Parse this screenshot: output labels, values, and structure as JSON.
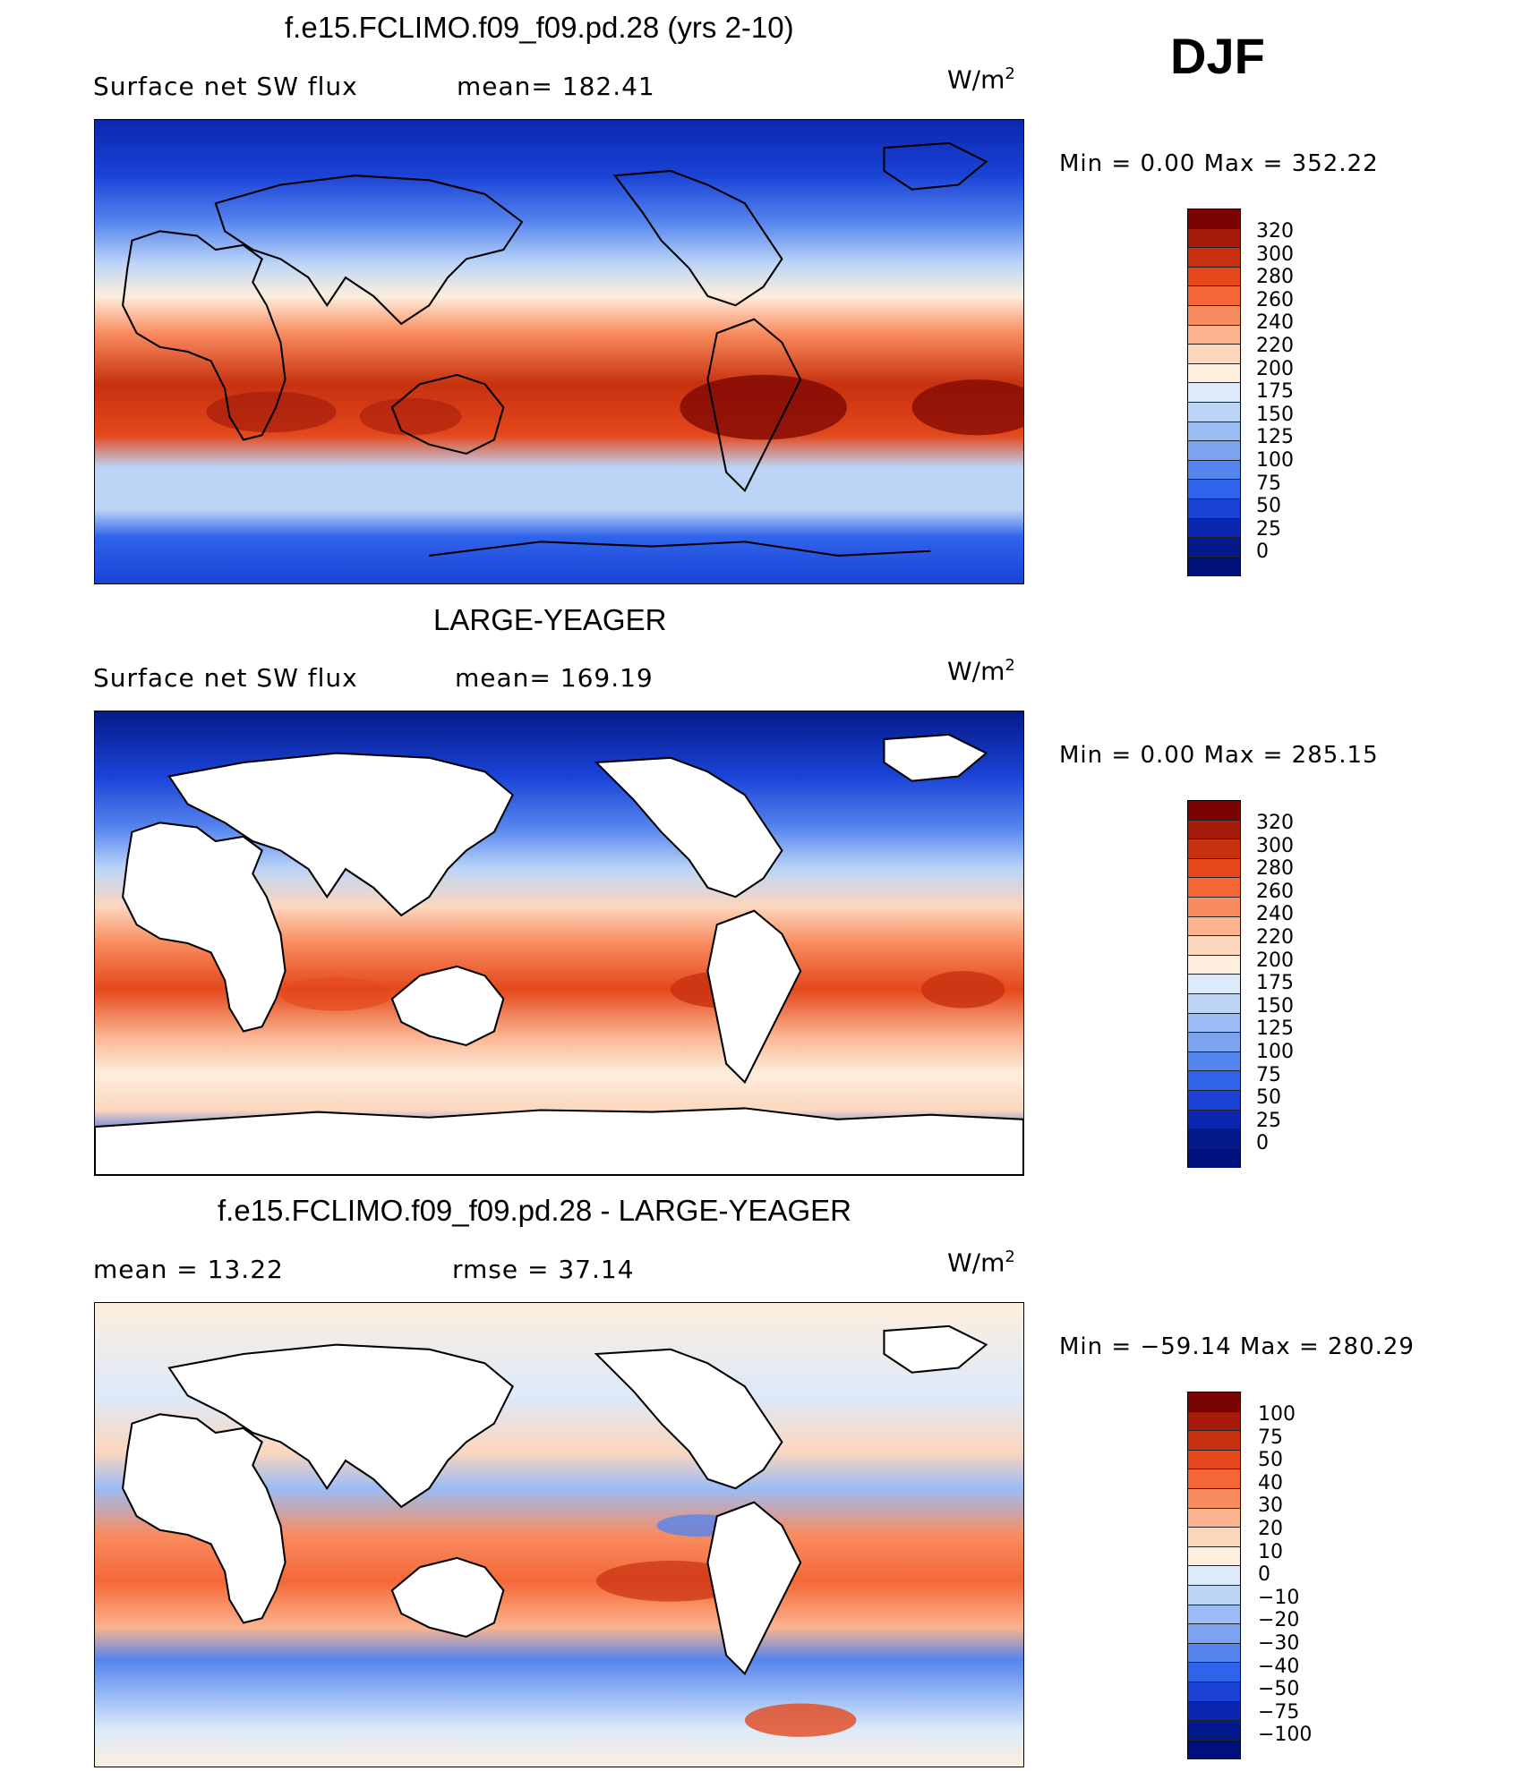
{
  "season": "DJF",
  "units": {
    "base": "W/m",
    "exp": "2"
  },
  "panels": [
    {
      "title": "f.e15.FCLIMO.f09_f09.pd.28 (yrs 2-10)",
      "left_label": "Surface net SW flux",
      "mid_label": "mean= 182.41",
      "min_max": "Min =      0.00  Max  =  352.22",
      "colorbar_ticks": [
        "320",
        "300",
        "280",
        "260",
        "240",
        "220",
        "200",
        "175",
        "150",
        "125",
        "100",
        "75",
        "50",
        "25",
        "0"
      ],
      "colorbar_colors": [
        "#7a0403",
        "#a51c0b",
        "#c7310f",
        "#e4481b",
        "#f46838",
        "#f98c5f",
        "#fbb390",
        "#fcd7be",
        "#fdeedd",
        "#dceafa",
        "#bcd5f7",
        "#9bbcf4",
        "#7ba3f0",
        "#5585ee",
        "#2f63ea",
        "#1a43d6",
        "#0b27b0",
        "#041a8a",
        "#00107a"
      ]
    },
    {
      "title": "LARGE-YEAGER",
      "left_label": "Surface net SW flux",
      "mid_label": "mean= 169.19",
      "min_max": "Min =      0.00  Max  =  285.15",
      "colorbar_ticks": [
        "320",
        "300",
        "280",
        "260",
        "240",
        "220",
        "200",
        "175",
        "150",
        "125",
        "100",
        "75",
        "50",
        "25",
        "0"
      ],
      "colorbar_colors": [
        "#7a0403",
        "#a51c0b",
        "#c7310f",
        "#e4481b",
        "#f46838",
        "#f98c5f",
        "#fbb390",
        "#fcd7be",
        "#fdeedd",
        "#dceafa",
        "#bcd5f7",
        "#9bbcf4",
        "#7ba3f0",
        "#5585ee",
        "#2f63ea",
        "#1a43d6",
        "#0b27b0",
        "#041a8a",
        "#00107a"
      ]
    },
    {
      "title": "f.e15.FCLIMO.f09_f09.pd.28 - LARGE-YEAGER",
      "left_label": "mean =    13.22",
      "mid_label": "rmse =    37.14",
      "min_max": "Min  = −59.14  Max  =  280.29",
      "colorbar_ticks": [
        "100",
        "75",
        "50",
        "40",
        "30",
        "20",
        "10",
        "0",
        "−10",
        "−20",
        "−30",
        "−40",
        "−50",
        "−75",
        "−100"
      ],
      "colorbar_colors": [
        "#7a0403",
        "#a51c0b",
        "#c7310f",
        "#e4481b",
        "#f46838",
        "#f98c5f",
        "#fbb390",
        "#fcd7be",
        "#fdeedd",
        "#dceafa",
        "#bcd5f7",
        "#9bbcf4",
        "#7ba3f0",
        "#5585ee",
        "#2f63ea",
        "#1a43d6",
        "#0b27b0",
        "#041a8a",
        "#00107a"
      ]
    }
  ]
}
